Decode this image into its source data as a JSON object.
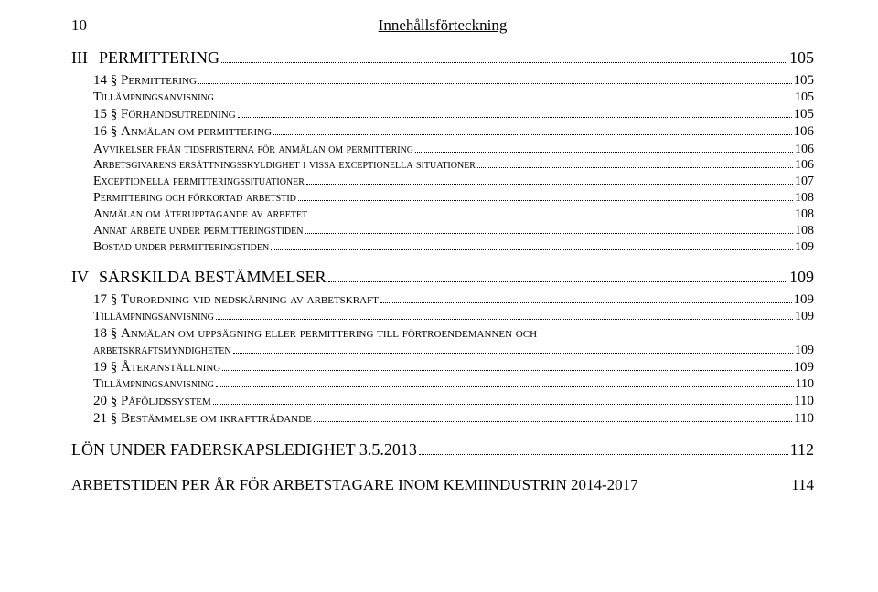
{
  "header": {
    "page_number": "10",
    "title": "Innehållsförteckning"
  },
  "toc": {
    "group1": {
      "roman": "III",
      "title": "PERMITTERING",
      "page": "105",
      "items": [
        {
          "num": "14 §",
          "label": "Permittering",
          "page": "105"
        },
        {
          "num": "",
          "label": "Tillämpningsanvisning",
          "page": "105"
        },
        {
          "num": "15 §",
          "label": "Förhandsutredning",
          "page": "105"
        },
        {
          "num": "16 §",
          "label": "Anmälan om permittering",
          "page": "106"
        },
        {
          "num": "",
          "label": "Avvikelser från tidsfristerna för anmälan om permittering",
          "page": "106"
        },
        {
          "num": "",
          "label": "Arbetsgivarens ersättningsskyldighet i vissa exceptionella situationer",
          "page": "106"
        },
        {
          "num": "",
          "label": "Exceptionella permitteringssituationer",
          "page": "107"
        },
        {
          "num": "",
          "label": "Permittering och förkortad arbetstid",
          "page": "108"
        },
        {
          "num": "",
          "label": "Anmälan om återupptagande av arbetet",
          "page": "108"
        },
        {
          "num": "",
          "label": "Annat arbete under permitteringstiden",
          "page": "108"
        },
        {
          "num": "",
          "label": "Bostad under permitteringstiden",
          "page": "109"
        }
      ]
    },
    "group2": {
      "roman": "IV",
      "title": "SÄRSKILDA BESTÄMMELSER",
      "page": "109",
      "items": [
        {
          "num": "17 §",
          "label": "Turordning vid nedskärning av arbetskraft",
          "page": "109"
        },
        {
          "num": "",
          "label": "Tillämpningsanvisning",
          "page": "109"
        },
        {
          "num": "18 §",
          "label_a": "Anmälan om uppsägning eller permittering till förtroendemannen och",
          "label_b": "arbetskraftsmyndigheten",
          "page": "109"
        },
        {
          "num": "19 §",
          "label": "Återanställning",
          "page": "109"
        },
        {
          "num": "",
          "label": "Tillämpningsanvisning",
          "page": "110"
        },
        {
          "num": "20 §",
          "label": "Påföljdssystem",
          "page": "110"
        },
        {
          "num": "21 §",
          "label": "Bestämmelse om ikraftträdande",
          "page": "110"
        }
      ]
    },
    "group3": {
      "title": "LÖN UNDER FADERSKAPSLEDIGHET   3.5.2013",
      "page": "112"
    },
    "final": {
      "title": "ARBETSTIDEN PER ÅR FÖR ARBETSTAGARE INOM KEMIINDUSTRIN 2014-2017",
      "page": "114"
    }
  }
}
